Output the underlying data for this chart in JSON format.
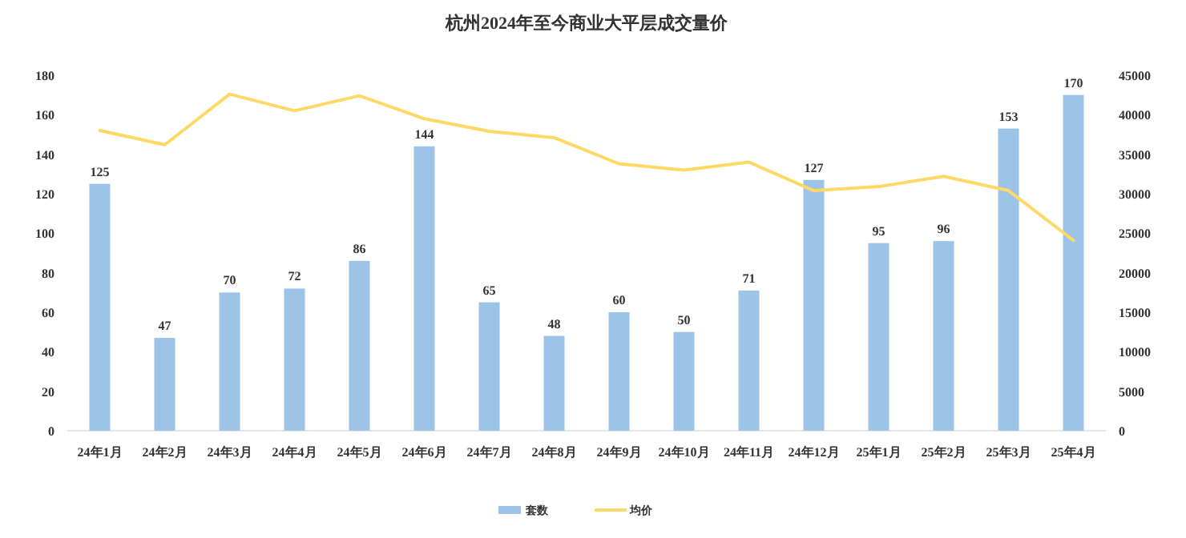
{
  "chart_data": {
    "type": "bar",
    "title": "杭州2024年至今商业大平层成交量价",
    "categories": [
      "24年1月",
      "24年2月",
      "24年3月",
      "24年4月",
      "24年5月",
      "24年6月",
      "24年7月",
      "24年8月",
      "24年9月",
      "24年10月",
      "24年11月",
      "24年12月",
      "25年1月",
      "25年2月",
      "25年3月",
      "25年4月"
    ],
    "series": [
      {
        "name": "套数",
        "color": "#9dc3e6",
        "values": [
          125,
          47,
          70,
          72,
          86,
          144,
          65,
          48,
          60,
          50,
          71,
          127,
          95,
          96,
          153,
          170
        ],
        "value_labels": [
          "125",
          "47",
          "70",
          "72",
          "86",
          "144",
          "65",
          "48",
          "60",
          "50",
          "71",
          "127",
          "95",
          "96",
          "153",
          "170"
        ]
      },
      {
        "name": "均价",
        "type": "line",
        "axis": "y2",
        "color": "#ffd966",
        "values": [
          38000,
          36200,
          42600,
          40500,
          42400,
          39500,
          37900,
          37100,
          33800,
          33000,
          34000,
          30400,
          30900,
          32200,
          30400,
          24100
        ]
      }
    ],
    "ylim": [
      0,
      180
    ],
    "yticks": [
      0,
      20,
      40,
      60,
      80,
      100,
      120,
      140,
      160,
      180
    ],
    "y2lim": [
      0,
      45000
    ],
    "y2ticks": [
      0,
      5000,
      10000,
      15000,
      20000,
      25000,
      30000,
      35000,
      40000,
      45000
    ],
    "legend": "bottom"
  }
}
